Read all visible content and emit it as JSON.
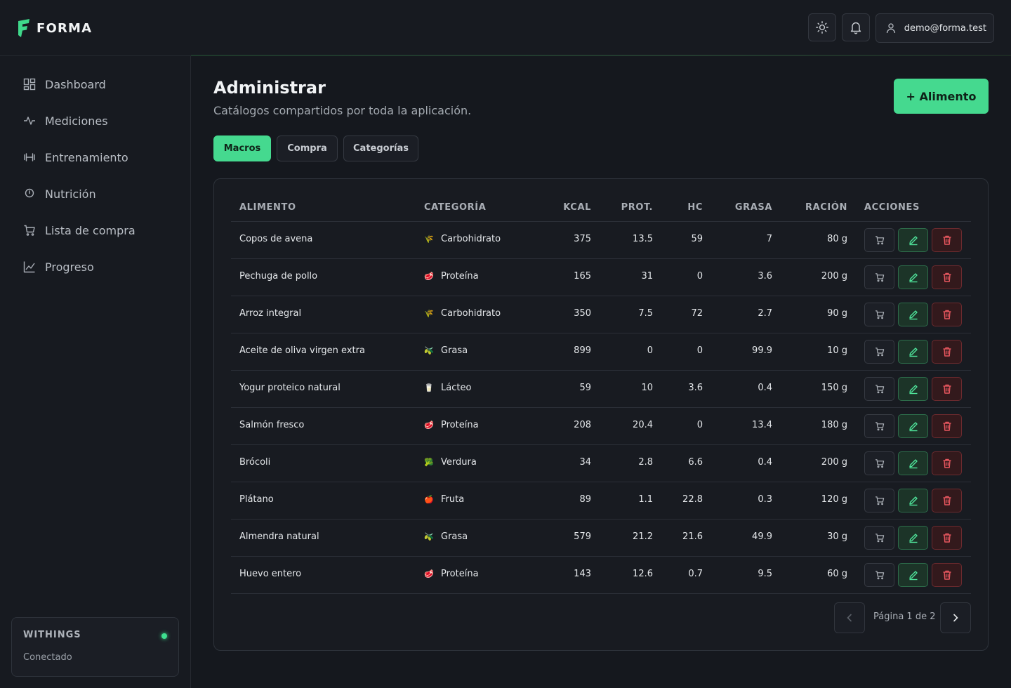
{
  "app": {
    "name": "FORMA"
  },
  "header": {
    "user_email": "demo@forma.test"
  },
  "sidebar": {
    "items": [
      {
        "label": "Dashboard",
        "icon": "grid-icon"
      },
      {
        "label": "Mediciones",
        "icon": "pulse-icon"
      },
      {
        "label": "Entrenamiento",
        "icon": "dumbbell-icon"
      },
      {
        "label": "Nutrición",
        "icon": "clock-icon"
      },
      {
        "label": "Lista de compra",
        "icon": "cart-icon"
      },
      {
        "label": "Progreso",
        "icon": "line-chart-icon"
      }
    ],
    "device": {
      "name": "WITHINGS",
      "status": "Conectado",
      "status_color": "#3ee08f"
    }
  },
  "main": {
    "title": "Administrar",
    "subtitle": "Catálogos compartidos por toda la aplicación.",
    "add_button": "+ Alimento",
    "tabs": [
      {
        "label": "Macros",
        "active": true
      },
      {
        "label": "Compra",
        "active": false
      },
      {
        "label": "Categorías",
        "active": false
      }
    ],
    "table": {
      "headers": {
        "food": "ALIMENTO",
        "category": "CATEGORÍA",
        "kcal": "KCAL",
        "prot": "PROT.",
        "hc": "HC",
        "fat": "GRASA",
        "portion": "RACIÓN",
        "actions": "ACCIONES"
      },
      "rows": [
        {
          "food": "Copos de avena",
          "cat_icon": "🌾",
          "category": "Carbohidrato",
          "kcal": "375",
          "prot": "13.5",
          "hc": "59",
          "fat": "7",
          "portion": "80 g"
        },
        {
          "food": "Pechuga de pollo",
          "cat_icon": "🥩",
          "category": "Proteína",
          "kcal": "165",
          "prot": "31",
          "hc": "0",
          "fat": "3.6",
          "portion": "200 g"
        },
        {
          "food": "Arroz integral",
          "cat_icon": "🌾",
          "category": "Carbohidrato",
          "kcal": "350",
          "prot": "7.5",
          "hc": "72",
          "fat": "2.7",
          "portion": "90 g"
        },
        {
          "food": "Aceite de oliva virgen extra",
          "cat_icon": "🫒",
          "category": "Grasa",
          "kcal": "899",
          "prot": "0",
          "hc": "0",
          "fat": "99.9",
          "portion": "10 g"
        },
        {
          "food": "Yogur proteico natural",
          "cat_icon": "🥛",
          "category": "Lácteo",
          "kcal": "59",
          "prot": "10",
          "hc": "3.6",
          "fat": "0.4",
          "portion": "150 g"
        },
        {
          "food": "Salmón fresco",
          "cat_icon": "🥩",
          "category": "Proteína",
          "kcal": "208",
          "prot": "20.4",
          "hc": "0",
          "fat": "13.4",
          "portion": "180 g"
        },
        {
          "food": "Brócoli",
          "cat_icon": "🥦",
          "category": "Verdura",
          "kcal": "34",
          "prot": "2.8",
          "hc": "6.6",
          "fat": "0.4",
          "portion": "200 g"
        },
        {
          "food": "Plátano",
          "cat_icon": "🍎",
          "category": "Fruta",
          "kcal": "89",
          "prot": "1.1",
          "hc": "22.8",
          "fat": "0.3",
          "portion": "120 g"
        },
        {
          "food": "Almendra natural",
          "cat_icon": "🫒",
          "category": "Grasa",
          "kcal": "579",
          "prot": "21.2",
          "hc": "21.6",
          "fat": "49.9",
          "portion": "30 g"
        },
        {
          "food": "Huevo entero",
          "cat_icon": "🥩",
          "category": "Proteína",
          "kcal": "143",
          "prot": "12.6",
          "hc": "0.7",
          "fat": "9.5",
          "portion": "60 g"
        }
      ]
    },
    "pagination": {
      "label": "Página 1 de 2"
    }
  },
  "colors": {
    "accent": "#45d98f",
    "danger": "#e0535b",
    "background": "#15181e"
  }
}
